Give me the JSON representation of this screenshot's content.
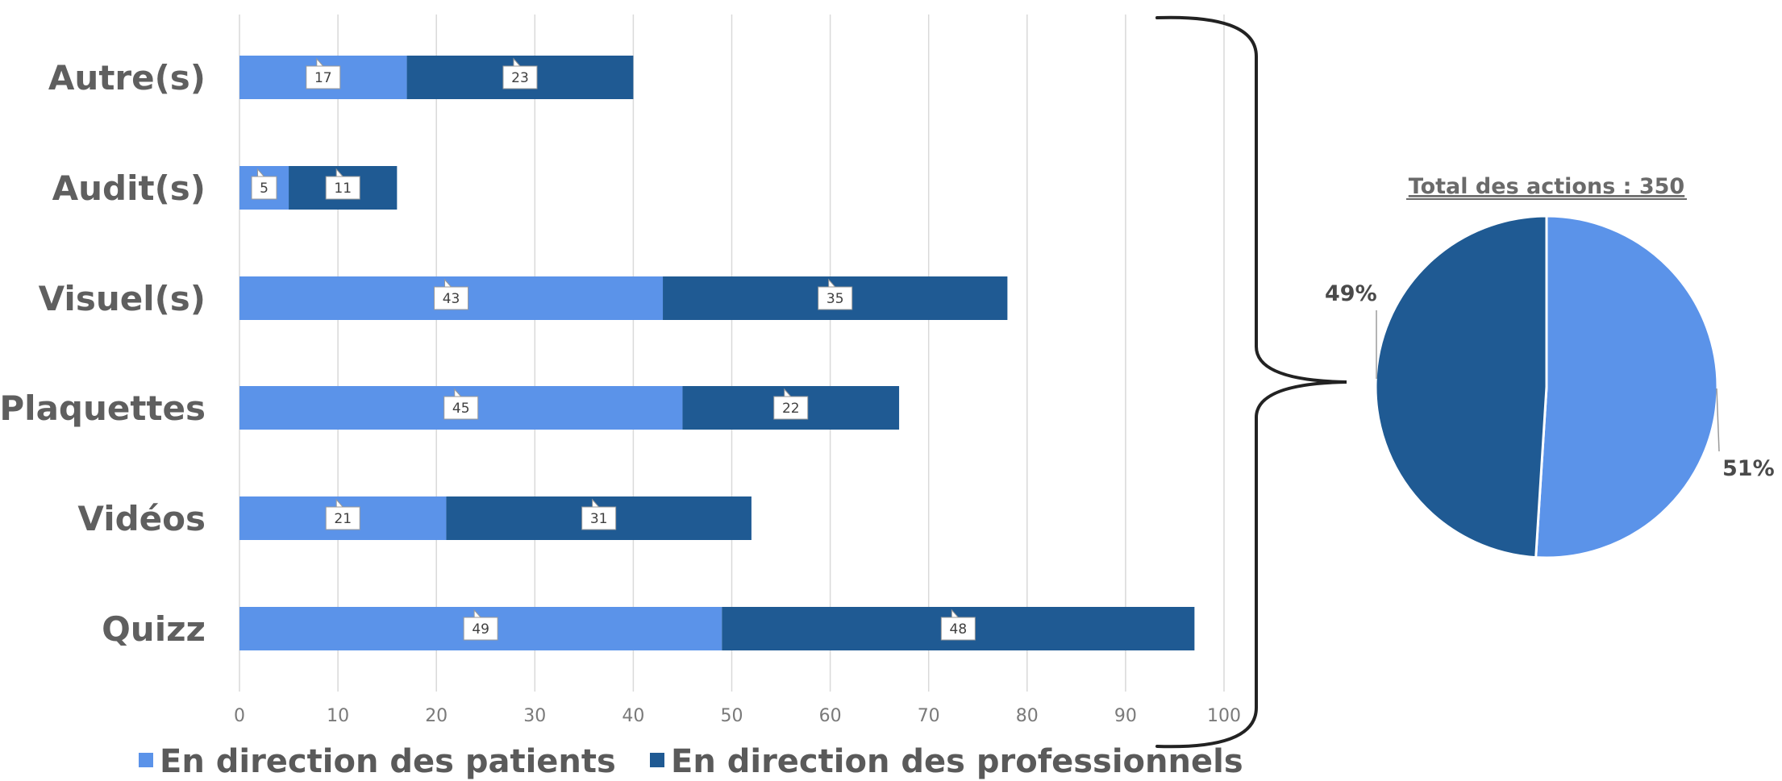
{
  "chart_data": [
    {
      "type": "bar",
      "orientation": "horizontal",
      "stacked": true,
      "categories": [
        "Autre(s)",
        "Audit(s)",
        "Visuel(s)",
        "Plaquettes",
        "Vidéos",
        "Quizz"
      ],
      "series": [
        {
          "name": "En direction des patients",
          "color": "#5b93e9",
          "values": [
            17,
            5,
            43,
            45,
            21,
            49
          ]
        },
        {
          "name": "En direction des professionnels",
          "color": "#1f5a93",
          "values": [
            23,
            11,
            35,
            22,
            31,
            48
          ]
        }
      ],
      "xlim": [
        0,
        100
      ],
      "x_ticks": [
        0,
        10,
        20,
        30,
        40,
        50,
        60,
        70,
        80,
        90,
        100
      ],
      "grid": true,
      "legend_position": "bottom",
      "data_labels": true
    },
    {
      "type": "pie",
      "title": "Total des actions : 350",
      "slices": [
        {
          "name": "En direction des patients",
          "color": "#5b93e9",
          "percent": 51,
          "label": "51%"
        },
        {
          "name": "En direction des professionnels",
          "color": "#1f5a93",
          "percent": 49,
          "label": "49%"
        }
      ]
    }
  ],
  "colors": {
    "patients": "#5b93e9",
    "professionnels": "#1f5a93",
    "grid": "#d9d9d9",
    "brace": "#222222"
  }
}
